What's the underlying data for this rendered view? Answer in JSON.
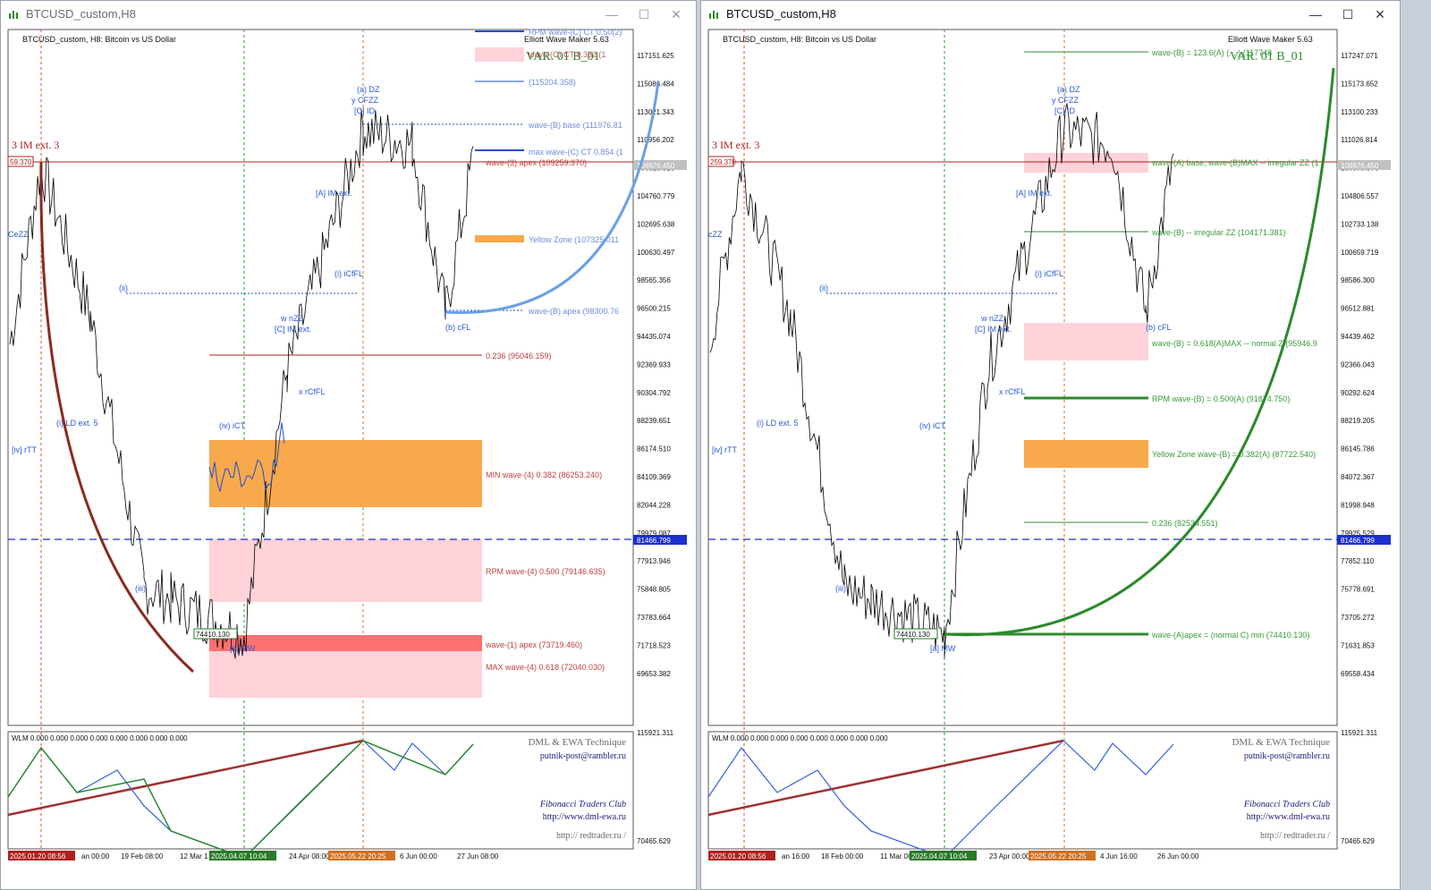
{
  "windows": [
    {
      "id": "left",
      "title": "BTCUSD_custom,H8",
      "header": "BTCUSD_custom, H8:  Bitcoin vs US Dollar",
      "ewm": "Elliott Wave Maker 5.63",
      "variant": "VAR. 01 B_01",
      "wlm": "WLM 0.000 0.000 0.000 0.000 0.000 0.000 0.000 0.000",
      "im_label": "3 IM ext. 3",
      "price_axis": [
        "117151.625",
        "115086.484",
        "113021.343",
        "110956.202",
        "106825.920",
        "104760.779",
        "102695.638",
        "100630.497",
        "98565.356",
        "96500.215",
        "94435.074",
        "92369.933",
        "90304.792",
        "88239.651",
        "86174.510",
        "84109.369",
        "82044.228",
        "79979.087",
        "77913.946",
        "75848.805",
        "73783.664",
        "71718.523",
        "69653.382"
      ],
      "indicator_axis": [
        "115921.311",
        "70465.629"
      ],
      "last_price": "108976.450",
      "cross_price": "81466.799",
      "left_tag": "59.370",
      "low_tag": "74410.130",
      "time_axis": [
        "an 00:00",
        "19 Feb 08:00",
        "12 Mar 1",
        "24 Apr 08:00",
        "6 Jun 00:00",
        "27 Jun 08:00"
      ],
      "time_tags": [
        "2025.01.20 08:56",
        "2025.04.07 10:04",
        "2025.05.22 20:25"
      ],
      "level_labels": [
        "RPM wave-(C) CT 0.50(2)",
        "wave-(C) CT 0.382 (1",
        "(115204.358)",
        "wave-(B) base (111976.81",
        "max wave-(C) CT 0.854 (1",
        "wave-(3) apex (109259.370)",
        "Yellow Zone (107325.011",
        "wave-(B) apex (98300.76",
        "0.236 (95046.159)",
        "MIN wave-(4) 0.382 (86253.240)",
        "RPM wave-(4) 0.500 (79146.635)",
        "wave-(1) apex (73719.460)",
        "MAX wave-(4) 0.618 (72040.030)"
      ],
      "wave_labels": [
        "(a) DZ",
        "y CFZZ",
        "[C] ID",
        "(b) cFL",
        "[iv] rTT",
        "(i) LD ext. 5",
        "(ii)",
        "(iii)",
        "(iv) iCT",
        "[a] MW",
        "w nZZ",
        "[C] IM ext.",
        "x rCfFL",
        "[A] IM ext.",
        "(i) iCfFL",
        "CeZZ"
      ],
      "footer": [
        "DML & EWA Technique",
        "putnik-post@rambler.ru",
        "Fibonacci    Traders    Club",
        "http://www.dml-ewa.ru",
        "http://  redtrader.ru  /"
      ]
    },
    {
      "id": "right",
      "title": "BTCUSD_custom,H8",
      "header": "BTCUSD_custom, H8:  Bitcoin vs US Dollar",
      "ewm": "Elliott Wave Maker 5.63",
      "variant": "VAR. 01 B_01",
      "wlm": "WLM 0.000 0.000 0.000 0.000 0.000 0.000 0.000 0.000",
      "im_label": "3 IM ext. 3",
      "price_axis": [
        "117247.071",
        "115173.652",
        "113100.233",
        "111026.814",
        "106879.976",
        "104806.557",
        "102733.138",
        "100659.719",
        "98586.300",
        "96512.881",
        "94439.462",
        "92366.043",
        "90292.624",
        "88219.205",
        "86145.786",
        "84072.367",
        "81998.948",
        "79925.529",
        "77852.110",
        "75778.691",
        "73705.272",
        "71631.853",
        "69558.434"
      ],
      "indicator_axis": [
        "115921.311",
        "70465.629"
      ],
      "last_price": "108976.450",
      "cross_price": "81466.799",
      "left_tag": "259.370",
      "low_tag": "74410.130",
      "time_axis": [
        "an 16:00",
        "18 Feb 00:00",
        "11 Mar 08",
        "23 Apr 00:00",
        "4 Jun 16:00",
        "26 Jun 00:00"
      ],
      "time_tags": [
        "2025.01.20 08:56",
        "2025.04.07 10:04",
        "2025.05.22 20:25"
      ],
      "level_labels": [
        "wave-(B) = 123.6(A) (... ) (117748",
        "wave-(A) base, wave-(B)MAX -- irregular ZZ (1",
        "wave-(B) -- irregular ZZ (104171.381)",
        "wave-(B) = 0.618(A)MAX -- normal Z (95946.9",
        "RPM wave-(B) = 0.500(A) (91874.750)",
        "Yellow Zone wave-(B) = 0.382(A) (87722.540)",
        "0.236 (82534.551)",
        "wave-(A)apex = (normal C) min (74410.130)"
      ],
      "wave_labels": [
        "(a) DZ",
        "y CFZZ",
        "[C] ID",
        "(b) cFL",
        "[iv] rTT",
        "(i) LD ext. 5",
        "(ii)",
        "(iii)",
        "(iv) iCT",
        "[a] MW",
        "w nZZ",
        "[C] IM ext.",
        "x rCfFL",
        "[A] IM ext.",
        "(i) iCfFL",
        "cZZ"
      ],
      "footer": [
        "DML & EWA Technique",
        "putnik-post@rambler.ru",
        "Fibonacci    Traders    Club",
        "http://www.dml-ewa.ru",
        "http://  redtrader.ru  /"
      ]
    }
  ],
  "chart_data": [
    {
      "type": "line",
      "title": "BTCUSD_custom, H8:  Bitcoin vs US Dollar",
      "x": [
        "2025.01.20",
        "2025.02.19",
        "2025.03.12",
        "2025.04.07",
        "2025.04.24",
        "2025.05.22",
        "2025.06.06",
        "2025.06.27"
      ],
      "series": [
        {
          "values": [
            109259,
            96000,
            78000,
            74410,
            94000,
            111900,
            98300,
            108976
          ]
        }
      ],
      "ylim": [
        69000,
        118000
      ]
    },
    {
      "type": "line",
      "title": "BTCUSD_custom, H8:  Bitcoin vs US Dollar",
      "x": [
        "2025.01.20",
        "2025.02.18",
        "2025.03.11",
        "2025.04.07",
        "2025.04.23",
        "2025.05.22",
        "2025.06.04",
        "2025.06.26"
      ],
      "series": [
        {
          "values": [
            109259,
            96000,
            78000,
            74410,
            94000,
            111900,
            98300,
            108976
          ]
        }
      ],
      "ylim": [
        69000,
        118000
      ]
    }
  ],
  "colors": {
    "blue_line": "#1f4fd6",
    "red_line": "#b02020",
    "orange_zone": "#f7a94b",
    "pink_zone": "#ffd2d9",
    "green_line": "#2f8a2f"
  }
}
